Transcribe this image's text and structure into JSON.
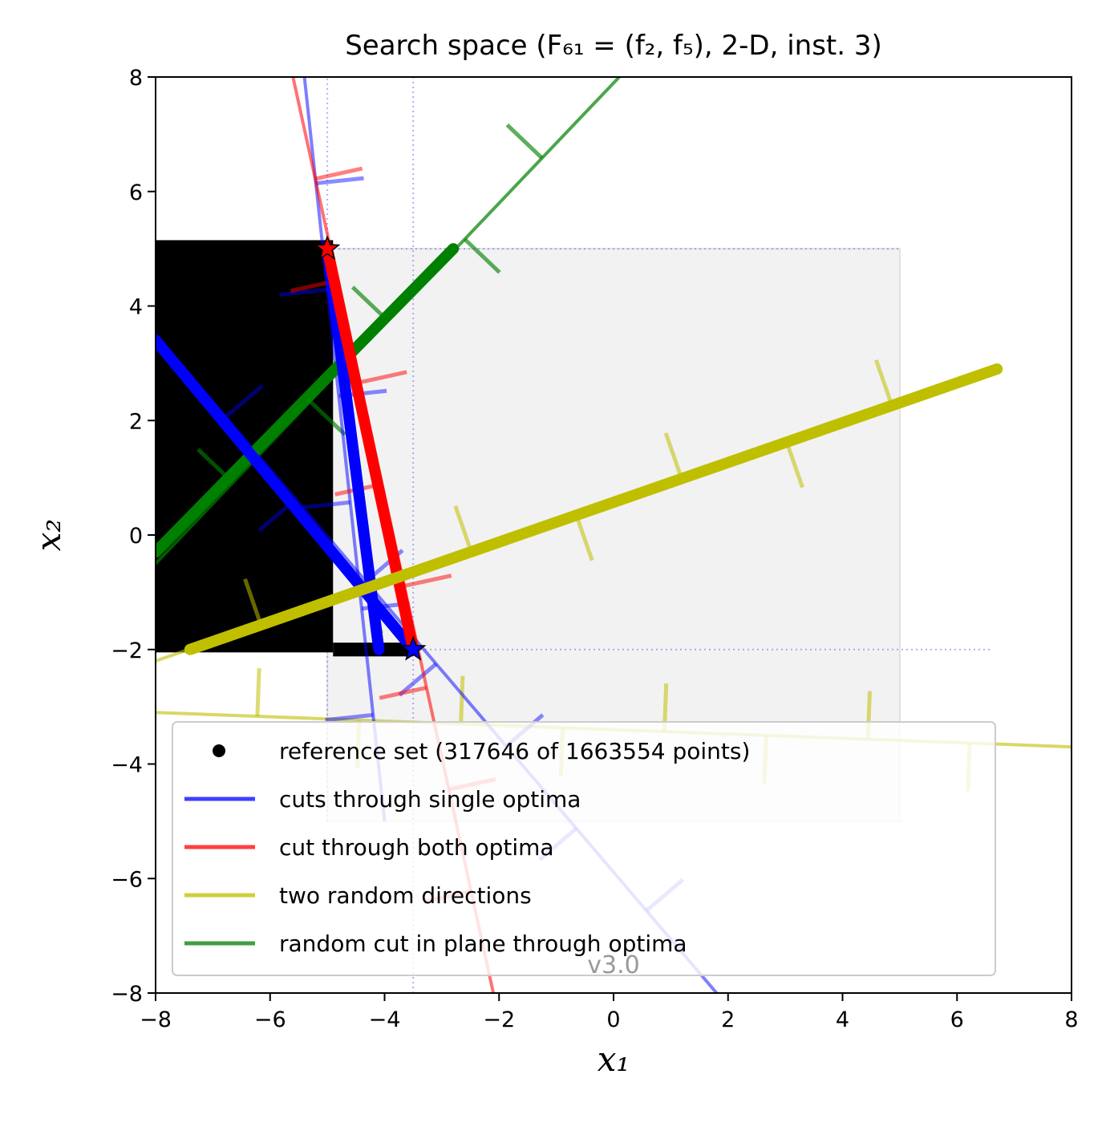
{
  "chart_data": {
    "type": "line",
    "title": "Search space (F₆₁ = (f₂, f₅), 2-D, inst. 3)",
    "xlabel": "x₁",
    "ylabel": "x₂",
    "xlim": [
      -8,
      8
    ],
    "ylim": [
      -8,
      8
    ],
    "xticks": [
      -8,
      -6,
      -4,
      -2,
      0,
      2,
      4,
      6,
      8
    ],
    "yticks": [
      -8,
      -6,
      -4,
      -2,
      0,
      2,
      4,
      6,
      8
    ],
    "xtick_labels": [
      "−8",
      "−6",
      "−4",
      "−2",
      "0",
      "2",
      "4",
      "6",
      "8"
    ],
    "ytick_labels": [
      "−8",
      "−6",
      "−4",
      "−2",
      "0",
      "2",
      "4",
      "6",
      "8"
    ],
    "watermark": "v3.0",
    "legend_position": "bottom",
    "optima": [
      {
        "name": "f₂ optimum",
        "x": -5.0,
        "y": 5.0,
        "color": "#ff0000"
      },
      {
        "name": "f₅ optimum",
        "x": -3.5,
        "y": -2.0,
        "color": "#0000ff"
      }
    ],
    "search_box": {
      "x": [
        -5,
        5
      ],
      "y": [
        -5,
        5
      ]
    },
    "reference_region": {
      "x": [
        -8,
        -4.9
      ],
      "y": [
        -2.05,
        5.15
      ],
      "bottom_strip_x": [
        -4.9,
        -3.5
      ]
    },
    "series": [
      {
        "name": "reference set (317646 of 1663554 points)",
        "color": "#000000",
        "marker": "dot"
      },
      {
        "name": "cuts through single optima",
        "color": "#0000ff",
        "lines": [
          [
            [
              -5.4,
              8.0
            ],
            [
              -4.0,
              -5.0
            ]
          ],
          [
            [
              -8.0,
              3.5
            ],
            [
              1.8,
              -8.0
            ]
          ]
        ],
        "front": [
          [
            -5.0,
            5.0
          ],
          [
            -4.1,
            -2.0
          ]
        ],
        "front2": [
          [
            -8.0,
            3.4
          ],
          [
            -3.5,
            -2.0
          ]
        ]
      },
      {
        "name": "cut through both optima",
        "color": "#ff0000",
        "lines": [
          [
            [
              -5.6,
              8.0
            ],
            [
              -2.1,
              -8.0
            ]
          ]
        ],
        "front": [
          [
            -5.0,
            5.0
          ],
          [
            -3.5,
            -2.0
          ]
        ]
      },
      {
        "name": "two random directions",
        "color": "#bfbf00",
        "lines": [
          [
            [
              -8.0,
              -2.2
            ],
            [
              6.7,
              2.9
            ]
          ],
          [
            [
              -8.0,
              -3.1
            ],
            [
              8.0,
              -3.7
            ]
          ]
        ],
        "front": [
          [
            -7.4,
            -2.0
          ],
          [
            6.7,
            2.9
          ]
        ]
      },
      {
        "name": "random cut in plane through optima",
        "color": "#008000",
        "lines": [
          [
            [
              -8.0,
              -0.5
            ],
            [
              0.1,
              8.0
            ]
          ]
        ],
        "front": [
          [
            -8.0,
            -0.3
          ],
          [
            -2.8,
            5.0
          ]
        ]
      }
    ]
  }
}
